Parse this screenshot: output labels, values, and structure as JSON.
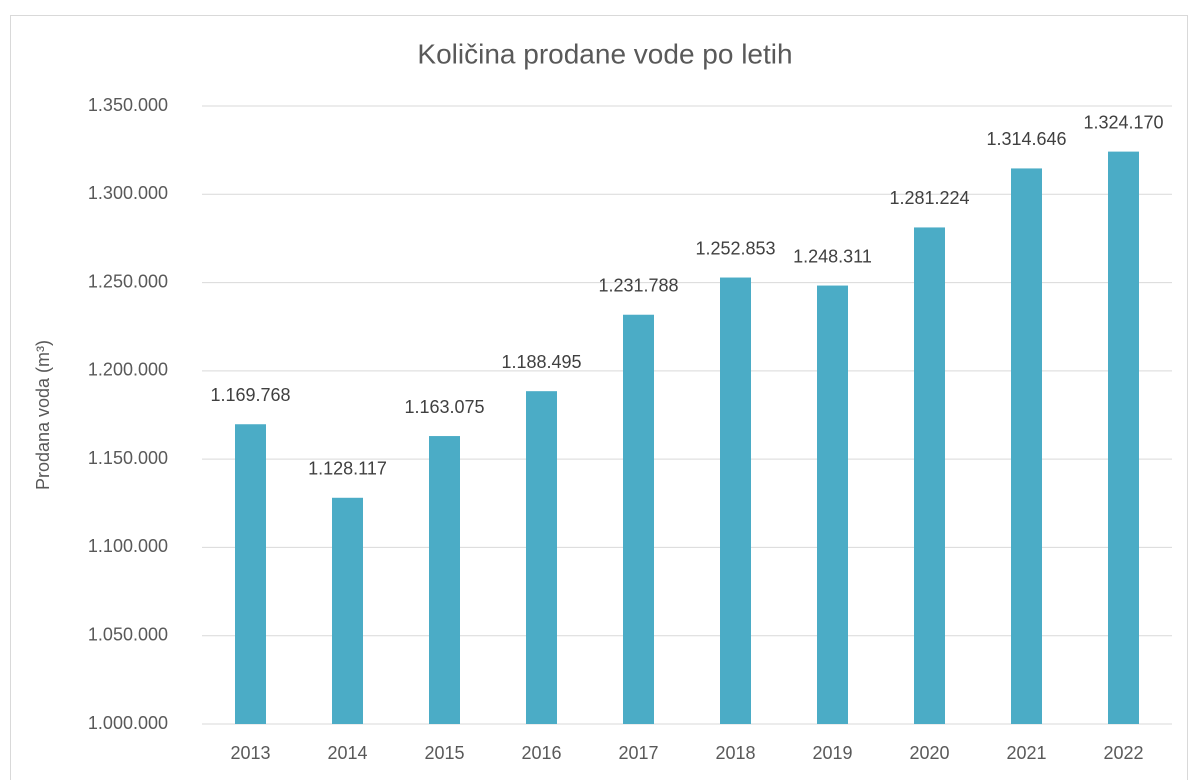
{
  "chart_data": {
    "type": "bar",
    "title": "Količina prodane vode po letih",
    "y_label": "Prodana voda (m³)",
    "categories": [
      "2013",
      "2014",
      "2015",
      "2016",
      "2017",
      "2018",
      "2019",
      "2020",
      "2021",
      "2022"
    ],
    "values": [
      1169768,
      1128117,
      1163075,
      1188495,
      1231788,
      1252853,
      1248311,
      1281224,
      1314646,
      1324170
    ],
    "value_labels": [
      "1.169.768",
      "1.128.117",
      "1.163.075",
      "1.188.495",
      "1.231.788",
      "1.252.853",
      "1.248.311",
      "1.281.224",
      "1.314.646",
      "1.324.170"
    ],
    "color": "#4bacc6",
    "ylim": [
      1000000,
      1350000
    ],
    "yticks": [
      {
        "value": 1000000,
        "label": "1.000.000"
      },
      {
        "value": 1050000,
        "label": "1.050.000"
      },
      {
        "value": 1100000,
        "label": "1.100.000"
      },
      {
        "value": 1150000,
        "label": "1.150.000"
      },
      {
        "value": 1200000,
        "label": "1.200.000"
      },
      {
        "value": 1250000,
        "label": "1.250.000"
      },
      {
        "value": 1300000,
        "label": "1.300.000"
      },
      {
        "value": 1350000,
        "label": "1.350.000"
      }
    ],
    "grid": true
  }
}
